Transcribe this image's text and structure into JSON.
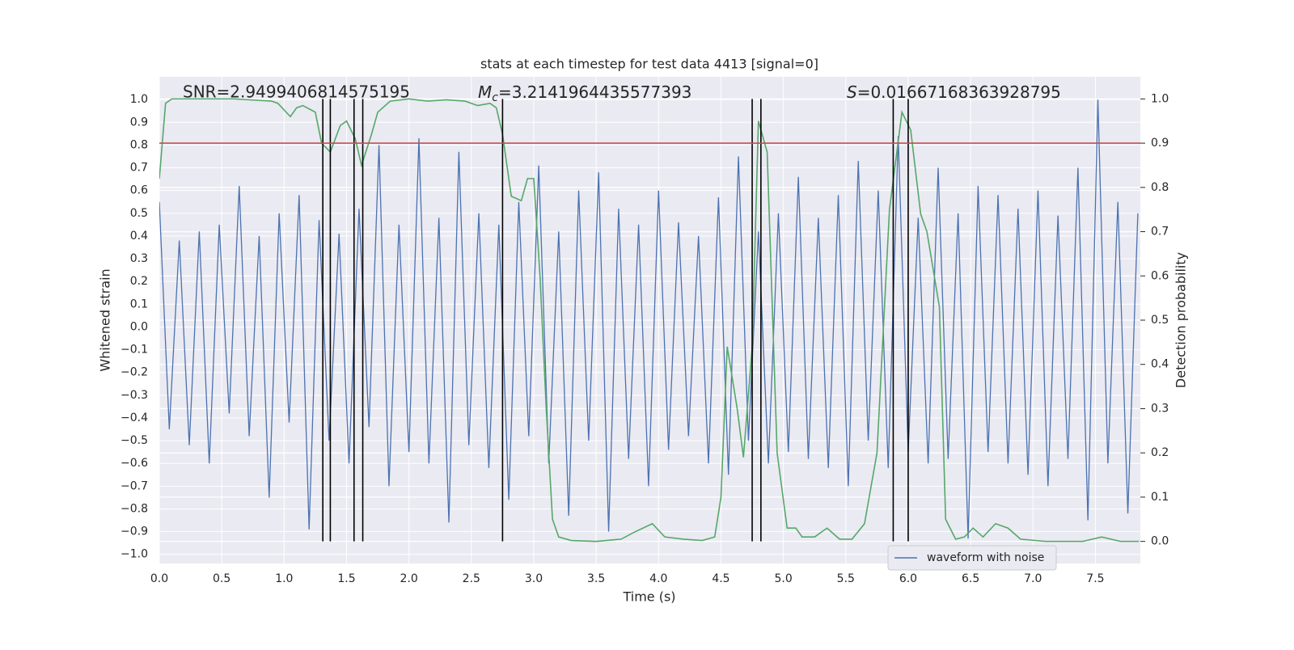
{
  "chart_data": {
    "type": "line",
    "title": "stats at each timestep for test data 4413 [signal=0]",
    "xlabel": "Time (s)",
    "ylabel": "Whitened strain",
    "y2label": "Detection probability",
    "annotations": [
      {
        "text": "SNR=2.9499406814575195"
      },
      {
        "symbol": "M",
        "subscript": "c",
        "text": "=3.2141964435577393"
      },
      {
        "symbol": "S",
        "text": "=0.01667168363928795"
      }
    ],
    "xlim": [
      0,
      7.86
    ],
    "ylim": [
      -1.04,
      1.1
    ],
    "y2lim": [
      -0.05,
      1.05
    ],
    "xticks": [
      {
        "value": 0,
        "label": "0.0"
      },
      {
        "value": 0.5,
        "label": "0.5"
      },
      {
        "value": 1,
        "label": "1.0"
      },
      {
        "value": 1.5,
        "label": "1.5"
      },
      {
        "value": 2,
        "label": "2.0"
      },
      {
        "value": 2.5,
        "label": "2.5"
      },
      {
        "value": 3,
        "label": "3.0"
      },
      {
        "value": 3.5,
        "label": "3.5"
      },
      {
        "value": 4,
        "label": "4.0"
      },
      {
        "value": 4.5,
        "label": "4.5"
      },
      {
        "value": 5,
        "label": "5.0"
      },
      {
        "value": 5.5,
        "label": "5.5"
      },
      {
        "value": 6,
        "label": "6.0"
      },
      {
        "value": 6.5,
        "label": "6.5"
      },
      {
        "value": 7,
        "label": "7.0"
      },
      {
        "value": 7.5,
        "label": "7.5"
      }
    ],
    "yticks": [
      {
        "value": 1,
        "label": "1.0"
      },
      {
        "value": 0.9,
        "label": "0.9"
      },
      {
        "value": 0.8,
        "label": "0.8"
      },
      {
        "value": 0.7,
        "label": "0.7"
      },
      {
        "value": 0.6,
        "label": "0.6"
      },
      {
        "value": 0.5,
        "label": "0.5"
      },
      {
        "value": 0.4,
        "label": "0.4"
      },
      {
        "value": 0.3,
        "label": "0.3"
      },
      {
        "value": 0.2,
        "label": "0.2"
      },
      {
        "value": 0.1,
        "label": "0.1"
      },
      {
        "value": 0,
        "label": "0.0"
      },
      {
        "value": -0.1,
        "label": "−0.1"
      },
      {
        "value": -0.2,
        "label": "−0.2"
      },
      {
        "value": -0.3,
        "label": "−0.3"
      },
      {
        "value": -0.4,
        "label": "−0.4"
      },
      {
        "value": -0.5,
        "label": "−0.5"
      },
      {
        "value": -0.6,
        "label": "−0.6"
      },
      {
        "value": -0.7,
        "label": "−0.7"
      },
      {
        "value": -0.8,
        "label": "−0.8"
      },
      {
        "value": -0.9,
        "label": "−0.9"
      },
      {
        "value": -1,
        "label": "−1.0"
      }
    ],
    "y2ticks": [
      {
        "value": 0,
        "label": "0.0"
      },
      {
        "value": 0.1,
        "label": "0.1"
      },
      {
        "value": 0.2,
        "label": "0.2"
      },
      {
        "value": 0.3,
        "label": "0.3"
      },
      {
        "value": 0.4,
        "label": "0.4"
      },
      {
        "value": 0.5,
        "label": "0.5"
      },
      {
        "value": 0.6,
        "label": "0.6"
      },
      {
        "value": 0.7,
        "label": "0.7"
      },
      {
        "value": 0.8,
        "label": "0.8"
      },
      {
        "value": 0.9,
        "label": "0.9"
      },
      {
        "value": 1,
        "label": "1.0"
      }
    ],
    "grid": true,
    "legend": "lower right",
    "series": [
      {
        "name": "waveform with noise",
        "color": "#4c72b0",
        "x": [
          0,
          0.08,
          0.16,
          0.24,
          0.32,
          0.4,
          0.48,
          0.56,
          0.64,
          0.72,
          0.8,
          0.88,
          0.96,
          1.04,
          1.12,
          1.2,
          1.28,
          1.36,
          1.44,
          1.52,
          1.6,
          1.68,
          1.76,
          1.84,
          1.92,
          2,
          2.08,
          2.16,
          2.24,
          2.32,
          2.4,
          2.48,
          2.56,
          2.64,
          2.72,
          2.8,
          2.88,
          2.96,
          3.04,
          3.12,
          3.2,
          3.28,
          3.36,
          3.44,
          3.52,
          3.6,
          3.68,
          3.76,
          3.84,
          3.92,
          4,
          4.08,
          4.16,
          4.24,
          4.32,
          4.4,
          4.48,
          4.56,
          4.64,
          4.72,
          4.8,
          4.88,
          4.96,
          5.04,
          5.12,
          5.2,
          5.28,
          5.36,
          5.44,
          5.52,
          5.6,
          5.68,
          5.76,
          5.84,
          5.92,
          6,
          6.08,
          6.16,
          6.24,
          6.32,
          6.4,
          6.48,
          6.56,
          6.64,
          6.72,
          6.8,
          6.88,
          6.96,
          7.04,
          7.12,
          7.2,
          7.28,
          7.36,
          7.44,
          7.52,
          7.6,
          7.68,
          7.76,
          7.84
        ],
        "values": [
          0.55,
          -0.45,
          0.38,
          -0.52,
          0.42,
          -0.6,
          0.45,
          -0.38,
          0.62,
          -0.48,
          0.4,
          -0.75,
          0.5,
          -0.42,
          0.58,
          -0.89,
          0.47,
          -0.5,
          0.41,
          -0.6,
          0.52,
          -0.44,
          0.8,
          -0.7,
          0.45,
          -0.55,
          0.83,
          -0.6,
          0.48,
          -0.86,
          0.77,
          -0.52,
          0.5,
          -0.62,
          0.45,
          -0.76,
          0.55,
          -0.48,
          0.71,
          -0.6,
          0.42,
          -0.83,
          0.6,
          -0.5,
          0.68,
          -0.9,
          0.52,
          -0.58,
          0.45,
          -0.7,
          0.6,
          -0.54,
          0.46,
          -0.48,
          0.4,
          -0.6,
          0.57,
          -0.65,
          0.75,
          -0.5,
          0.42,
          -0.6,
          0.5,
          -0.55,
          0.66,
          -0.58,
          0.48,
          -0.62,
          0.58,
          -0.7,
          0.73,
          -0.5,
          0.6,
          -0.62,
          0.84,
          -0.55,
          0.48,
          -0.6,
          0.7,
          -0.58,
          0.5,
          -0.93,
          0.62,
          -0.55,
          0.58,
          -0.6,
          0.52,
          -0.65,
          0.6,
          -0.7,
          0.49,
          -0.58,
          0.7,
          -0.85,
          1.0,
          -0.6,
          0.55,
          -0.82,
          0.5
        ]
      },
      {
        "color": "#55a868",
        "axis": "y2",
        "x": [
          0,
          0.05,
          0.1,
          0.3,
          0.6,
          0.9,
          0.95,
          1.05,
          1.1,
          1.15,
          1.25,
          1.3,
          1.37,
          1.45,
          1.5,
          1.57,
          1.62,
          1.7,
          1.75,
          1.85,
          2,
          2.15,
          2.3,
          2.45,
          2.55,
          2.65,
          2.7,
          2.75,
          2.82,
          2.9,
          2.95,
          3,
          3.05,
          3.1,
          3.15,
          3.2,
          3.3,
          3.5,
          3.7,
          3.8,
          3.95,
          4.05,
          4.2,
          4.35,
          4.45,
          4.5,
          4.55,
          4.63,
          4.68,
          4.75,
          4.8,
          4.87,
          4.95,
          5.03,
          5.1,
          5.15,
          5.25,
          5.35,
          5.45,
          5.55,
          5.65,
          5.75,
          5.85,
          5.95,
          6.02,
          6.1,
          6.15,
          6.25,
          6.3,
          6.38,
          6.45,
          6.52,
          6.6,
          6.7,
          6.8,
          6.9,
          7.1,
          7.4,
          7.55,
          7.7,
          7.85
        ],
        "values": [
          0.82,
          0.99,
          1,
          1,
          1,
          0.995,
          0.99,
          0.96,
          0.98,
          0.985,
          0.97,
          0.9,
          0.88,
          0.94,
          0.95,
          0.91,
          0.85,
          0.92,
          0.97,
          0.995,
          1,
          0.995,
          0.998,
          0.995,
          0.985,
          0.99,
          0.98,
          0.92,
          0.78,
          0.77,
          0.82,
          0.82,
          0.6,
          0.3,
          0.05,
          0.01,
          0.002,
          0,
          0.005,
          0.02,
          0.04,
          0.01,
          0.005,
          0.002,
          0.01,
          0.1,
          0.44,
          0.3,
          0.19,
          0.44,
          0.95,
          0.88,
          0.2,
          0.03,
          0.03,
          0.01,
          0.01,
          0.03,
          0.005,
          0.005,
          0.04,
          0.2,
          0.75,
          0.97,
          0.93,
          0.74,
          0.7,
          0.53,
          0.05,
          0.005,
          0.01,
          0.03,
          0.01,
          0.04,
          0.03,
          0.005,
          0,
          0,
          0.01,
          0,
          0
        ]
      }
    ],
    "vlines": [
      1.31,
      1.37,
      1.56,
      1.63,
      2.75,
      4.75,
      4.82,
      5.88,
      6.0
    ],
    "vline_color": "#000000",
    "hline": {
      "value": 0.9,
      "axis": "y2",
      "color": "#c44e52"
    }
  }
}
